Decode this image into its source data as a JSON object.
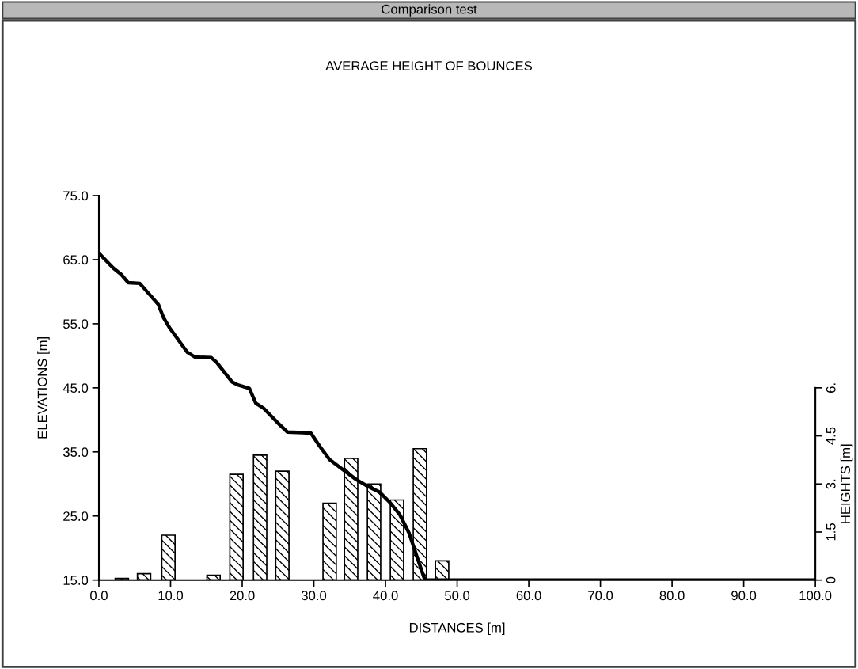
{
  "chart_data": {
    "type": "line",
    "title": "Comparison test",
    "subtitle": "AVERAGE HEIGHT OF BOUNCES",
    "xlabel": "DISTANCES [m]",
    "ylabel": "ELEVATIONS [m]",
    "y2label": "HEIGHTS [m]",
    "xlim": [
      0,
      100
    ],
    "xticks": [
      {
        "value": 0,
        "label": "0.0"
      },
      {
        "value": 10,
        "label": "10.0"
      },
      {
        "value": 20,
        "label": "20.0"
      },
      {
        "value": 30,
        "label": "30.0"
      },
      {
        "value": 40,
        "label": "40.0"
      },
      {
        "value": 50,
        "label": "50.0"
      },
      {
        "value": 60,
        "label": "60.0"
      },
      {
        "value": 70,
        "label": "70.0"
      },
      {
        "value": 80,
        "label": "80.0"
      },
      {
        "value": 90,
        "label": "90.0"
      },
      {
        "value": 100,
        "label": "100.0"
      }
    ],
    "ylim": [
      15,
      75
    ],
    "yticks": [
      {
        "value": 15,
        "label": "15.0"
      },
      {
        "value": 25,
        "label": "25.0"
      },
      {
        "value": 35,
        "label": "35.0"
      },
      {
        "value": 45,
        "label": "45.0"
      },
      {
        "value": 55,
        "label": "55.0"
      },
      {
        "value": 65,
        "label": "65.0"
      },
      {
        "value": 75,
        "label": "75.0"
      }
    ],
    "y2lim": [
      0,
      12
    ],
    "y2ticks": [
      0,
      1.5,
      {
        "value": 3,
        "label": "3."
      },
      4.5,
      {
        "value": 6,
        "label": "6."
      }
    ],
    "grid": false,
    "legend": false,
    "series": [
      {
        "type": "bar",
        "axis": "y2",
        "color": "#000000",
        "x": [
          3.2,
          6.3,
          9.7,
          16.0,
          19.2,
          22.5,
          25.6,
          32.2,
          35.2,
          38.4,
          41.6,
          44.8,
          47.9
        ],
        "values": [
          0.05,
          0.2,
          1.4,
          0.15,
          3.3,
          3.9,
          3.4,
          2.4,
          3.8,
          3.0,
          2.5,
          4.1,
          0.6
        ]
      },
      {
        "color": "#000000",
        "x": [
          0,
          2.0,
          3.1,
          4.1,
          5.7,
          8.3,
          9.0,
          9.9,
          11.2,
          12.3,
          13.4,
          15.7,
          16.4,
          18.6,
          19.3,
          21.0,
          21.9,
          23.0,
          24.9,
          26.3,
          28.5,
          29.6,
          30.8,
          32.2,
          34.1,
          35.9,
          37.4,
          39.2,
          40.7,
          42.0,
          43.3,
          44.4,
          45.5,
          100
        ],
        "values": [
          66.0,
          63.7,
          62.7,
          61.4,
          61.3,
          58.0,
          56.0,
          54.3,
          52.3,
          50.6,
          49.8,
          49.7,
          49.0,
          45.9,
          45.5,
          44.9,
          42.6,
          41.8,
          39.6,
          38.1,
          38.0,
          37.9,
          35.9,
          33.8,
          32.2,
          30.7,
          29.7,
          28.7,
          27.0,
          25.2,
          22.3,
          18.6,
          15.0,
          15.0
        ]
      }
    ]
  }
}
